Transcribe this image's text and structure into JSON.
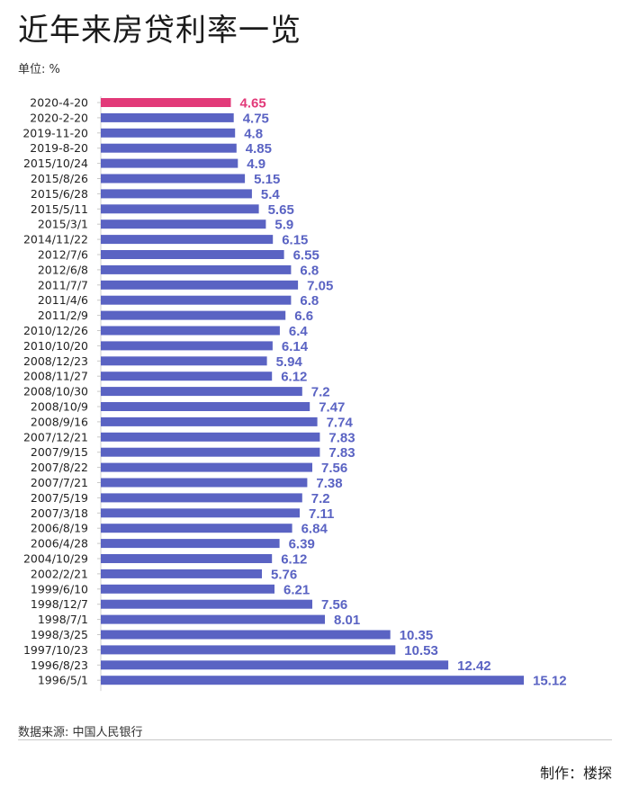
{
  "title": "近年来房贷利率一览",
  "unit": "单位: %",
  "source": "数据来源: 中国人民银行",
  "maker": "制作：楼探",
  "colors": {
    "highlight": "#e23a79",
    "bar": "#5a63c3"
  },
  "chart_data": {
    "type": "bar",
    "orientation": "horizontal",
    "title": "近年来房贷利率一览",
    "xlabel": "",
    "ylabel": "",
    "xlim": [
      0,
      15.12
    ],
    "categories": [
      "2020-4-20",
      "2020-2-20",
      "2019-11-20",
      "2019-8-20",
      "2015/10/24",
      "2015/8/26",
      "2015/6/28",
      "2015/5/11",
      "2015/3/1",
      "2014/11/22",
      "2012/7/6",
      "2012/6/8",
      "2011/7/7",
      "2011/4/6",
      "2011/2/9",
      "2010/12/26",
      "2010/10/20",
      "2008/12/23",
      "2008/11/27",
      "2008/10/30",
      "2008/10/9",
      "2008/9/16",
      "2007/12/21",
      "2007/9/15",
      "2007/8/22",
      "2007/7/21",
      "2007/5/19",
      "2007/3/18",
      "2006/8/19",
      "2006/4/28",
      "2004/10/29",
      "2002/2/21",
      "1999/6/10",
      "1998/12/7",
      "1998/7/1",
      "1998/3/25",
      "1997/10/23",
      "1996/8/23",
      "1996/5/1"
    ],
    "values": [
      4.65,
      4.75,
      4.8,
      4.85,
      4.9,
      5.15,
      5.4,
      5.65,
      5.9,
      6.15,
      6.55,
      6.8,
      7.05,
      6.8,
      6.6,
      6.4,
      6.14,
      5.94,
      6.12,
      7.2,
      7.47,
      7.74,
      7.83,
      7.83,
      7.56,
      7.38,
      7.2,
      7.11,
      6.84,
      6.39,
      6.12,
      5.76,
      6.21,
      7.56,
      8.01,
      10.35,
      10.53,
      12.42,
      15.12
    ],
    "labels": [
      "4.65",
      "4.75",
      "4.8",
      "4.85",
      "4.9",
      "5.15",
      "5.4",
      "5.65",
      "5.9",
      "6.15",
      "6.55",
      "6.8",
      "7.05",
      "6.8",
      "6.6",
      "6.4",
      "6.14",
      "5.94",
      "6.12",
      "7.2",
      "7.47",
      "7.74",
      "7.83",
      "7.83",
      "7.56",
      "7.38",
      "7.2",
      "7.11",
      "6.84",
      "6.39",
      "6.12",
      "5.76",
      "6.21",
      "7.56",
      "8.01",
      "10.35",
      "10.53",
      "12.42",
      "15.12"
    ],
    "highlight_index": 0
  }
}
